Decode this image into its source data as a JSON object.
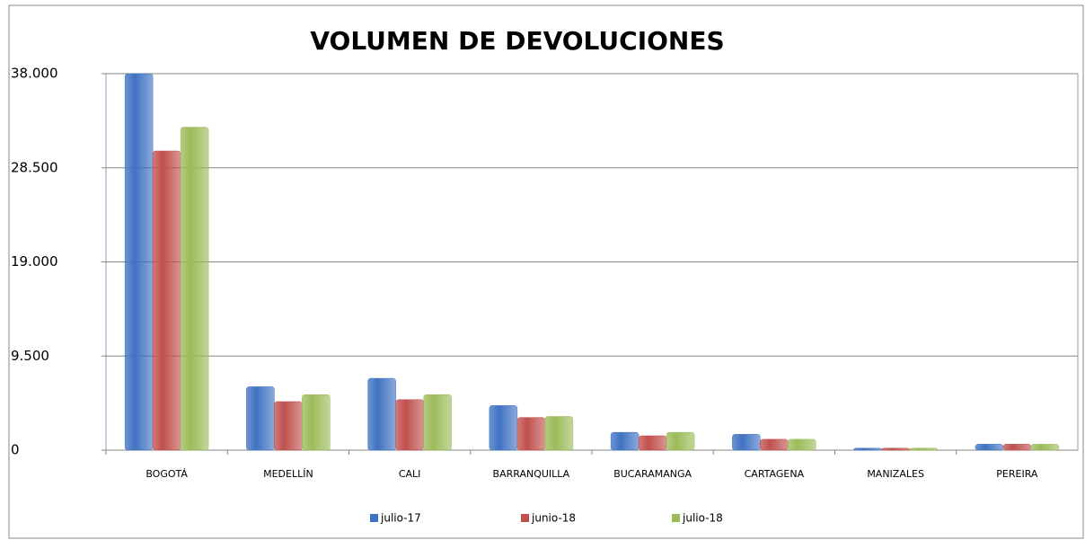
{
  "chart_data": {
    "type": "bar",
    "title": "VOLUMEN DE DEVOLUCIONES",
    "categories": [
      "BOGOTÁ",
      "MEDELLÍN",
      "CALI",
      "BARRANQUILLA",
      "BUCARAMANGA",
      "CARTAGENA",
      "MANIZALES",
      "PEREIRA"
    ],
    "series": [
      {
        "name": "julio-17",
        "color": "#3f72c2",
        "values": [
          38000,
          6400,
          7250,
          4500,
          1800,
          1600,
          200,
          600
        ]
      },
      {
        "name": "junio-18",
        "color": "#c0504d",
        "values": [
          30200,
          4900,
          5100,
          3300,
          1450,
          1100,
          200,
          600
        ]
      },
      {
        "name": "julio-18",
        "color": "#9bbb59",
        "values": [
          32600,
          5600,
          5600,
          3400,
          1800,
          1100,
          200,
          600
        ]
      }
    ],
    "ylim": [
      0,
      38000
    ],
    "yticks": [
      0,
      {
        "value": 9500,
        "label": "9.500"
      },
      {
        "value": 19000,
        "label": "19.000"
      },
      {
        "value": 28500,
        "label": "28.500"
      },
      {
        "value": 38000,
        "label": "38.000"
      }
    ],
    "grid": true,
    "legend": "bottom"
  }
}
